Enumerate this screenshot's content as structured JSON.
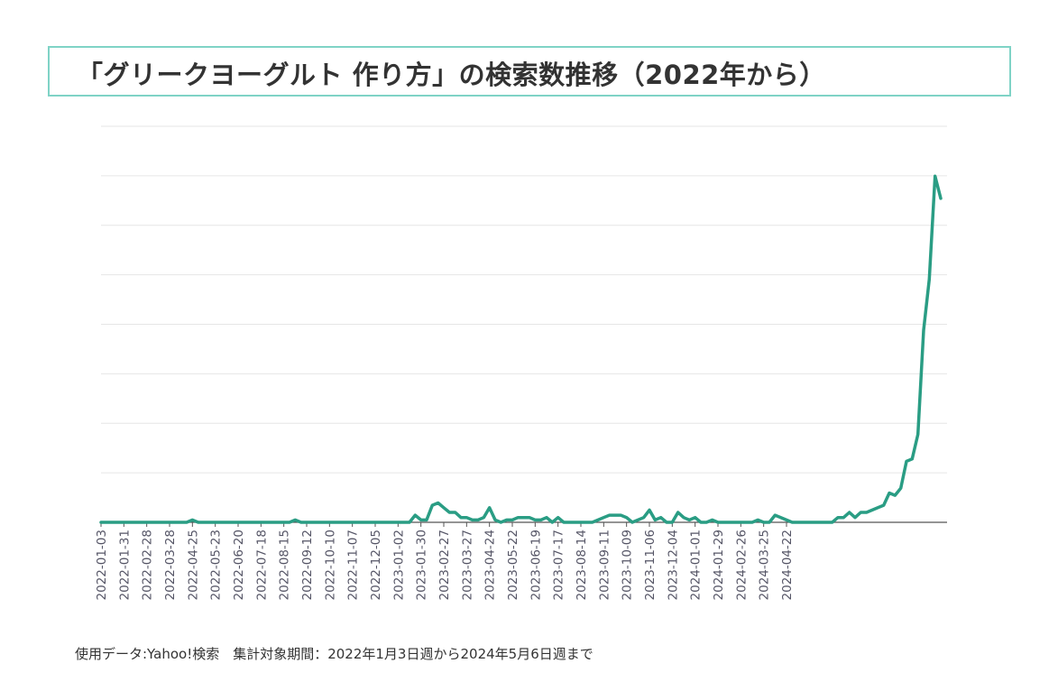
{
  "title": "「グリークヨーグルト 作り方」の検索数推移（2022年から）",
  "source_note": "使用データ:Yahoo!検索　集計対象期間：2022年1月3日週から2024年5月6日週まで",
  "colors": {
    "line": "#2a9d84",
    "grid": "#e6e6e6",
    "axis": "#555555",
    "tick_text": "#555566",
    "title_border": "#7fd3c6"
  },
  "chart_data": {
    "type": "line",
    "title": "「グリークヨーグルト 作り方」の検索数推移（2022年から）",
    "xlabel": "",
    "ylabel": "",
    "ylim": [
      0,
      100
    ],
    "y_ticks": [
      0,
      12.5,
      25,
      37.5,
      50,
      62.5,
      75,
      87.5,
      100
    ],
    "y_tick_labels_shown": false,
    "grid": "horizontal",
    "legend": "none",
    "x_tick_labels": [
      "2022-01-03",
      "2022-01-31",
      "2022-02-28",
      "2022-03-28",
      "2022-04-25",
      "2022-05-23",
      "2022-06-20",
      "2022-07-18",
      "2022-08-15",
      "2022-09-12",
      "2022-10-10",
      "2022-11-07",
      "2022-12-05",
      "2023-01-02",
      "2023-01-30",
      "2023-02-27",
      "2023-03-27",
      "2023-04-24",
      "2023-05-22",
      "2023-06-19",
      "2023-07-17",
      "2023-08-14",
      "2023-09-11",
      "2023-10-09",
      "2023-11-06",
      "2023-12-04",
      "2024-01-01",
      "2024-01-29",
      "2024-02-26",
      "2024-03-25",
      "2024-04-22"
    ],
    "series": [
      {
        "values": [
          0,
          0,
          0,
          0,
          0,
          0,
          0,
          0,
          0,
          0,
          0,
          0,
          0,
          0,
          0,
          0,
          0.6,
          0,
          0,
          0,
          0,
          0,
          0,
          0,
          0,
          0,
          0,
          0,
          0,
          0,
          0,
          0,
          0,
          0,
          0.6,
          0,
          0,
          0,
          0,
          0,
          0,
          0,
          0,
          0,
          0,
          0,
          0,
          0,
          0,
          0,
          0,
          0,
          0,
          0,
          0,
          1.8,
          0.6,
          0.6,
          4.3,
          4.9,
          3.7,
          2.5,
          2.5,
          1.2,
          1.2,
          0.6,
          0.6,
          1.2,
          3.7,
          0.6,
          0,
          0.6,
          0.6,
          1.2,
          1.2,
          1.2,
          0.6,
          0.6,
          1.2,
          0,
          1.2,
          0,
          0,
          0,
          0,
          0,
          0,
          0.6,
          1.2,
          1.8,
          1.8,
          1.8,
          1.2,
          0,
          0.6,
          1.2,
          3.1,
          0.6,
          1.2,
          0,
          0,
          2.5,
          1.2,
          0.6,
          1.2,
          0,
          0,
          0.6,
          0,
          0,
          0,
          0,
          0,
          0,
          0,
          0.6,
          0,
          0,
          1.8,
          1.2,
          0.6,
          0,
          0,
          0,
          0,
          0,
          0,
          0,
          0,
          1.2,
          1.2,
          2.5,
          1.2,
          2.5,
          2.5,
          3.1,
          3.7,
          4.3,
          7.4,
          6.8,
          8.6,
          15.4,
          16,
          22.2,
          48.5,
          61.4,
          87.4,
          81.8
        ]
      }
    ]
  }
}
